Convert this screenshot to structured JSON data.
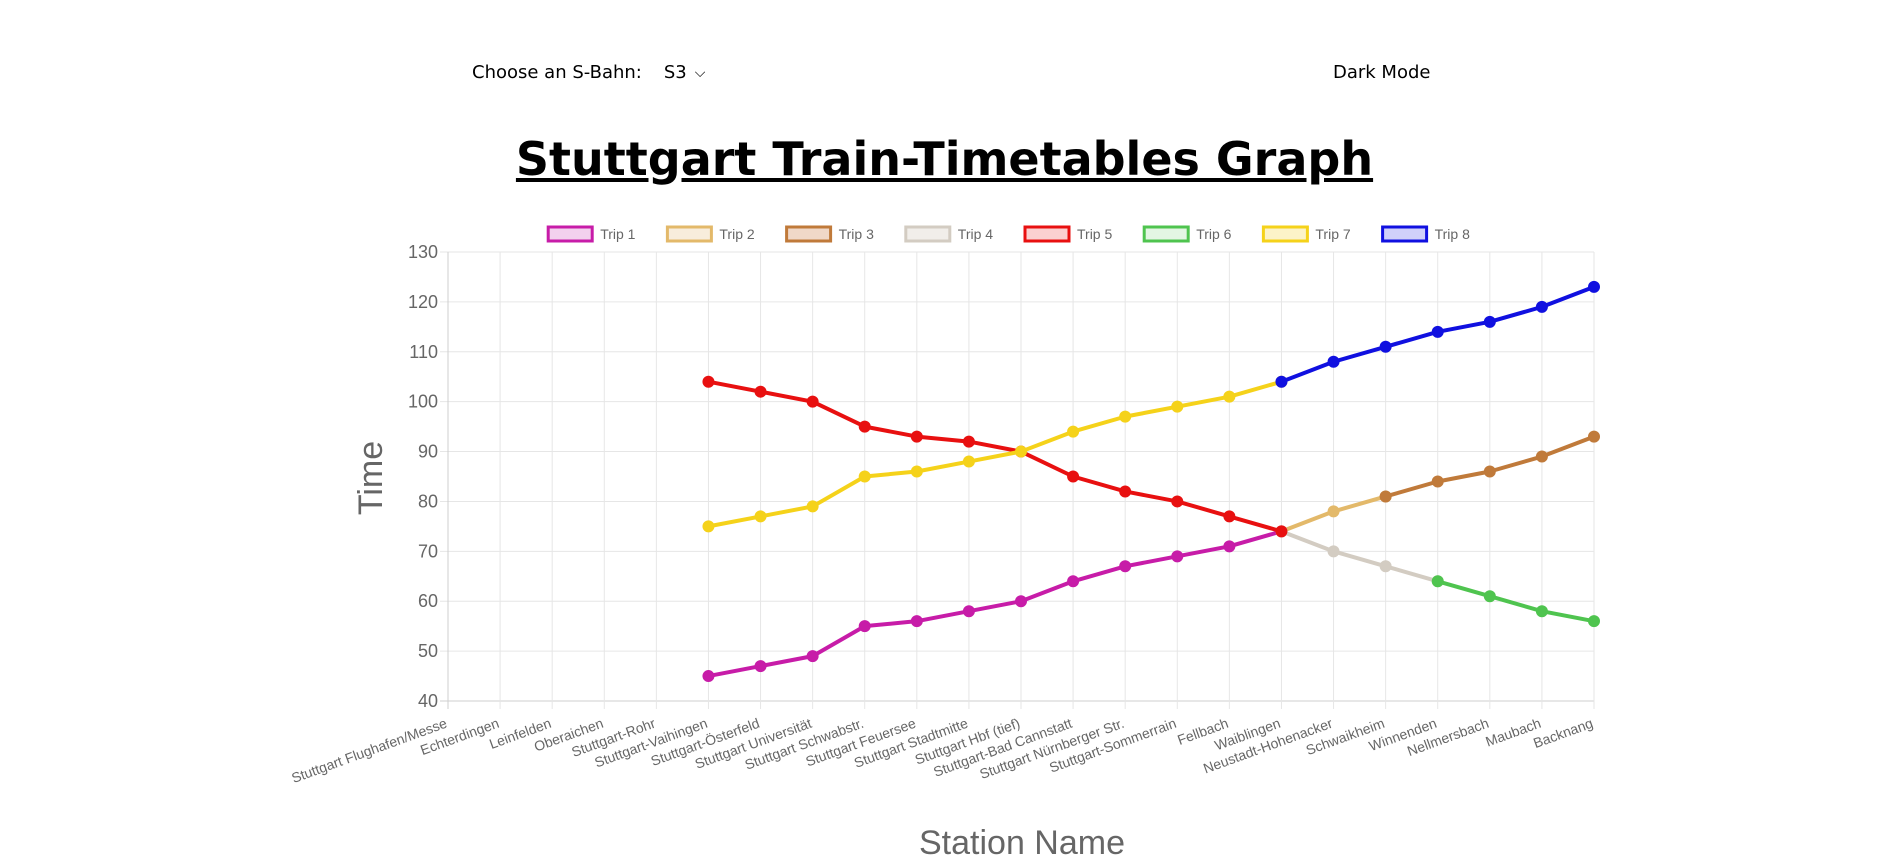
{
  "controls": {
    "sbahn_label": "Choose an S-Bahn:",
    "sbahn_value": "S3",
    "dark_mode_label": "Dark Mode"
  },
  "page_title": "Stuttgart Train-Timetables Graph",
  "chart_data": {
    "type": "line",
    "title": "",
    "xlabel": "Station Name",
    "ylabel": "Time",
    "ylim": [
      40,
      130
    ],
    "yticks": [
      40,
      50,
      60,
      70,
      80,
      90,
      100,
      110,
      120,
      130
    ],
    "grid": true,
    "legend_position": "top",
    "categories": [
      "Stuttgart Flughafen/Messe",
      "Echterdingen",
      "Leinfelden",
      "Oberaichen",
      "Stuttgart-Rohr",
      "Stuttgart-Vaihingen",
      "Stuttgart-Österfeld",
      "Stuttgart Universität",
      "Stuttgart Schwabstr.",
      "Stuttgart Feuersee",
      "Stuttgart Stadtmitte",
      "Stuttgart Hbf (tief)",
      "Stuttgart-Bad Cannstatt",
      "Stuttgart Nürnberger Str.",
      "Stuttgart-Sommerrain",
      "Fellbach",
      "Waiblingen",
      "Neustadt-Hohenacker",
      "Schwaikheim",
      "Winnenden",
      "Nellmersbach",
      "Maubach",
      "Backnang"
    ],
    "series": [
      {
        "name": "Trip 1",
        "color": "#c71ca8",
        "fill": "#f3d1ee",
        "values": [
          null,
          null,
          null,
          null,
          null,
          45,
          47,
          49,
          55,
          56,
          58,
          60,
          64,
          67,
          69,
          71,
          74,
          null,
          null,
          null,
          null,
          null,
          null
        ]
      },
      {
        "name": "Trip 2",
        "color": "#e3b96a",
        "fill": "#f8eddc",
        "values": [
          null,
          null,
          null,
          null,
          null,
          null,
          null,
          null,
          null,
          null,
          null,
          null,
          null,
          null,
          null,
          null,
          74,
          78,
          81,
          null,
          null,
          null,
          null
        ]
      },
      {
        "name": "Trip 3",
        "color": "#c07a3a",
        "fill": "#f0d8c8",
        "values": [
          null,
          null,
          null,
          null,
          null,
          null,
          null,
          null,
          null,
          null,
          null,
          null,
          null,
          null,
          null,
          null,
          null,
          null,
          81,
          84,
          86,
          89,
          93
        ]
      },
      {
        "name": "Trip 4",
        "color": "#d3ccc2",
        "fill": "#f1eeea",
        "values": [
          null,
          null,
          null,
          null,
          null,
          null,
          null,
          null,
          null,
          null,
          null,
          null,
          null,
          null,
          null,
          null,
          74,
          70,
          67,
          64,
          null,
          null,
          null
        ]
      },
      {
        "name": "Trip 5",
        "color": "#e81010",
        "fill": "#fbd0d0",
        "values": [
          null,
          null,
          null,
          null,
          null,
          104,
          102,
          100,
          95,
          93,
          92,
          90,
          85,
          82,
          80,
          77,
          74,
          null,
          null,
          null,
          null,
          null,
          null
        ]
      },
      {
        "name": "Trip 6",
        "color": "#4fc44f",
        "fill": "#e3f6e3",
        "values": [
          null,
          null,
          null,
          null,
          null,
          null,
          null,
          null,
          null,
          null,
          null,
          null,
          null,
          null,
          null,
          null,
          null,
          null,
          null,
          64,
          61,
          58,
          56
        ]
      },
      {
        "name": "Trip 7",
        "color": "#f5d21a",
        "fill": "#fcf3c8",
        "values": [
          null,
          null,
          null,
          null,
          null,
          75,
          77,
          79,
          85,
          86,
          88,
          90,
          94,
          97,
          99,
          101,
          104,
          null,
          null,
          null,
          null,
          null,
          null
        ]
      },
      {
        "name": "Trip 8",
        "color": "#1010e0",
        "fill": "#d0d0fa",
        "values": [
          null,
          null,
          null,
          null,
          null,
          null,
          null,
          null,
          null,
          null,
          null,
          null,
          null,
          null,
          null,
          null,
          104,
          108,
          111,
          114,
          116,
          119,
          123
        ]
      }
    ]
  }
}
